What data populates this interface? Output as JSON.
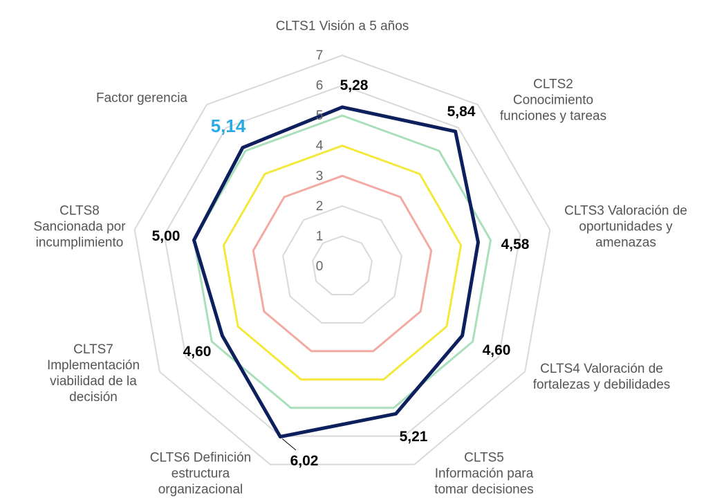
{
  "chart_data": {
    "type": "radar",
    "categories": [
      "CLTS1 Visión a 5 años",
      "CLTS2 Conocimiento funciones y tareas",
      "CLTS3 Valoración de oportunidades y amenazas",
      "CLTS4 Valoración de fortalezas y debilidades",
      "CLTS5 Información para tomar decisiones",
      "CLTS6 Definición estructura organizacional",
      "CLTS7 Implementación viabilidad de la decisión",
      "CLTS8 Sancionada por incumplimiento",
      "Factor gerencia"
    ],
    "rlim": [
      0,
      7
    ],
    "rticks": [
      0,
      1,
      2,
      3,
      4,
      5,
      6,
      7
    ],
    "grid": true,
    "series": [
      {
        "color": "#f2aaa2",
        "values": [
          3,
          3,
          3,
          3,
          3,
          3,
          3,
          3,
          3
        ]
      },
      {
        "color": "#f4e83a",
        "values": [
          4,
          4,
          4,
          4,
          4,
          4,
          4,
          4,
          4
        ]
      },
      {
        "color": "#a9dfbb",
        "values": [
          5,
          5,
          5,
          5,
          5,
          5,
          5,
          5,
          5
        ]
      },
      {
        "color": "#0e1f5e",
        "values": [
          5.28,
          5.84,
          4.58,
          4.6,
          5.21,
          6.02,
          4.6,
          5.0,
          5.14
        ],
        "value_labels": [
          "5,28",
          "5,84",
          "4,58",
          "4,60",
          "5,21",
          "6,02",
          "4,60",
          "5,00",
          "5,14"
        ],
        "value_label_colors": [
          "#000000",
          "#000000",
          "#000000",
          "#000000",
          "#000000",
          "#000000",
          "#000000",
          "#000000",
          "#29abe2"
        ]
      }
    ]
  }
}
